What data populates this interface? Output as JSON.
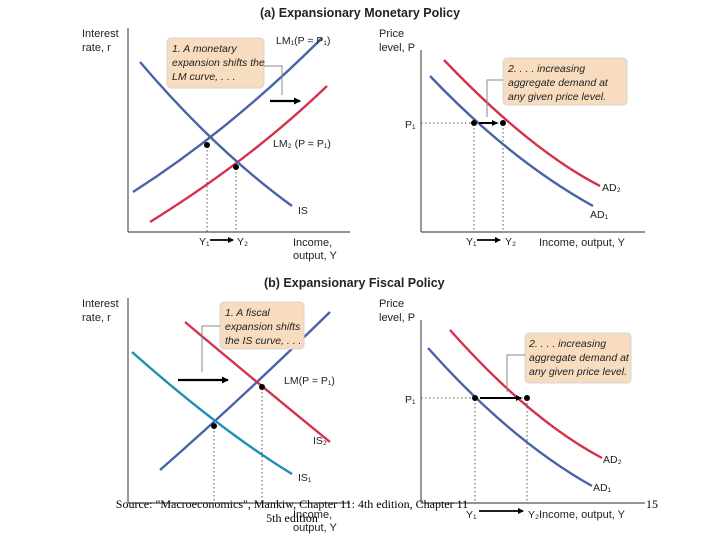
{
  "colors": {
    "blue_curve": "#4a63a8",
    "red_curve": "#d6304a",
    "teal_curve": "#1d8fb0",
    "note_fill": "#f8dcc0",
    "note_border": "#d5d5d5",
    "axis": "#555555",
    "arrow": "#000000"
  },
  "panel_a": {
    "title": "(a) Expansionary Monetary Policy",
    "left": {
      "y_label_1": "Interest",
      "y_label_2": "rate, r",
      "x_label_1": "Income,",
      "x_label_2": "output, Y",
      "curve_lm1": "LM₁(P = P₁)",
      "curve_lm2": "LM₂ (P = P₁)",
      "curve_is": "IS",
      "tick_y1": "Y₁",
      "tick_y2": "Y₂",
      "note": [
        "1. A monetary",
        "expansion shifts the",
        "LM curve, . . ."
      ]
    },
    "right": {
      "y_label_1": "Price",
      "y_label_2": "level, P",
      "x_label": "Income, output, Y",
      "tick_p1": "P₁",
      "tick_y1": "Y₁",
      "tick_y2": "Y₂",
      "curve_ad1": "AD₁",
      "curve_ad2": "AD₂",
      "note": [
        "2. . . . increasing",
        "aggregate demand at",
        "any given price level."
      ]
    }
  },
  "panel_b": {
    "title": "(b) Expansionary Fiscal Policy",
    "left": {
      "y_label_1": "Interest",
      "y_label_2": "rate, r",
      "x_label_1": "Income,",
      "x_label_2": "output, Y",
      "curve_lm": "LM(P = P₁)",
      "curve_is1": "IS₁",
      "curve_is2": "IS₂",
      "tick_y1": "Y₁",
      "tick_y2": "Y₂",
      "note": [
        "1. A fiscal",
        "expansion shifts",
        "the IS curve, . . ."
      ]
    },
    "right": {
      "y_label_1": "Price",
      "y_label_2": "level, P",
      "x_label": "Income, output, Y",
      "tick_p1": "P₁",
      "tick_y1": "Y₁",
      "tick_y2": "Y₂",
      "curve_ad1": "AD₁",
      "curve_ad2": "AD₂",
      "note": [
        "2. . . . increasing",
        "aggregate demand at",
        "any given price level."
      ]
    }
  },
  "footer": {
    "source_line1": "Source: \"Macroeconomics\", Mankiw, Chapter 11: 4th edition, Chapter 11",
    "source_line2": "5th edition",
    "page_number": "15"
  }
}
